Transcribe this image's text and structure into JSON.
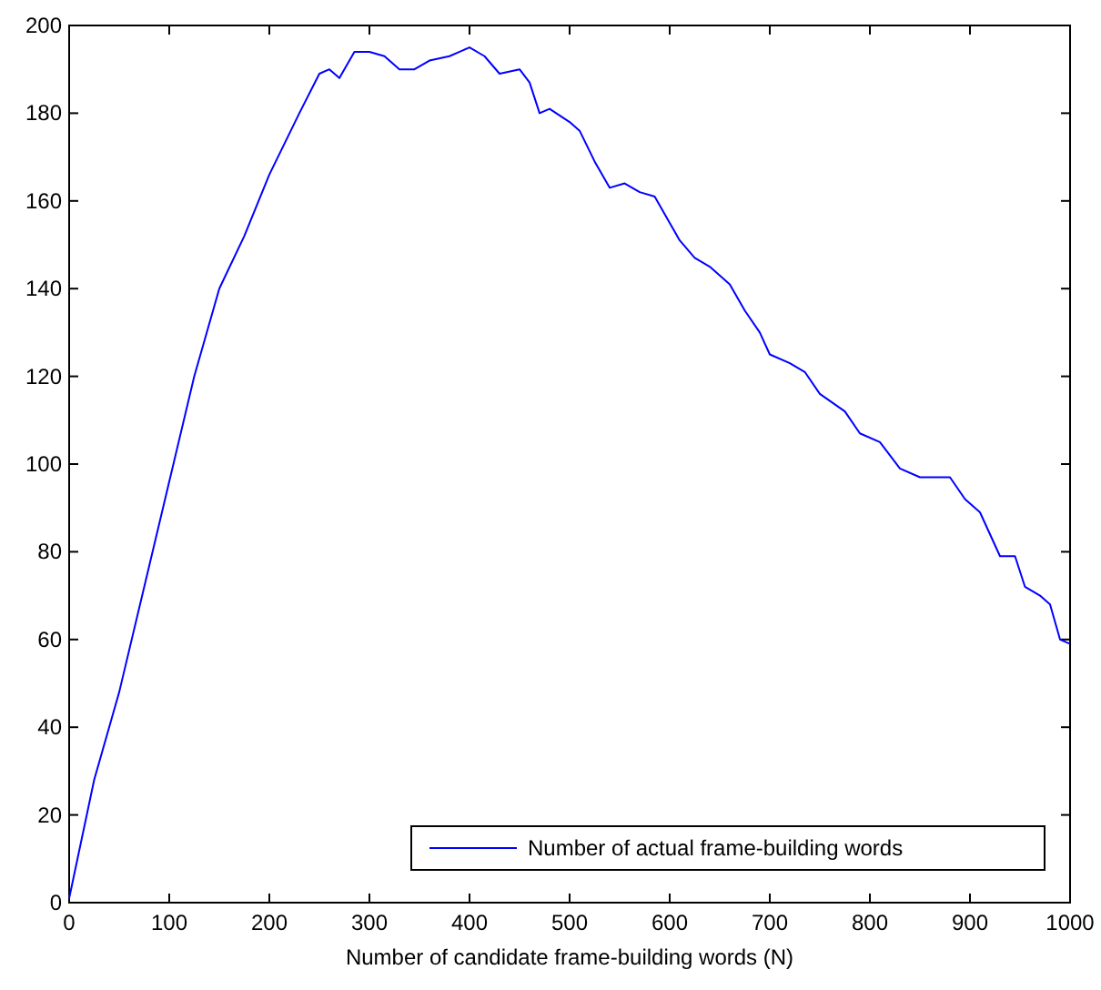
{
  "chart_data": {
    "type": "line",
    "xlabel": "Number of candidate frame-building words (N)",
    "xlim": [
      0,
      1000
    ],
    "xticks": [
      0,
      100,
      200,
      300,
      400,
      500,
      600,
      700,
      800,
      900,
      1000
    ],
    "ylim": [
      0,
      200
    ],
    "yticks": [
      0,
      20,
      40,
      60,
      80,
      100,
      120,
      140,
      160,
      180,
      200
    ],
    "grid": false,
    "legend": "bottom right",
    "series": [
      {
        "name": "Number of actual frame-building words",
        "color": "#0000ff",
        "x": [
          0,
          25,
          50,
          75,
          100,
          125,
          150,
          175,
          200,
          215,
          230,
          250,
          260,
          270,
          285,
          300,
          315,
          330,
          345,
          360,
          380,
          400,
          415,
          430,
          450,
          460,
          470,
          480,
          500,
          510,
          525,
          540,
          555,
          570,
          585,
          600,
          610,
          625,
          640,
          660,
          675,
          690,
          700,
          720,
          735,
          750,
          775,
          790,
          810,
          830,
          850,
          880,
          895,
          910,
          930,
          945,
          955,
          970,
          980,
          990,
          1000
        ],
        "values": [
          1,
          28,
          48,
          72,
          96,
          120,
          140,
          152,
          166,
          173,
          180,
          189,
          190,
          188,
          194,
          194,
          193,
          190,
          190,
          192,
          193,
          195,
          193,
          189,
          190,
          187,
          180,
          181,
          178,
          176,
          169,
          163,
          164,
          162,
          161,
          155,
          151,
          147,
          145,
          141,
          135,
          130,
          125,
          123,
          121,
          116,
          112,
          107,
          105,
          99,
          97,
          97,
          92,
          89,
          79,
          79,
          72,
          70,
          68,
          60,
          59
        ]
      }
    ]
  }
}
